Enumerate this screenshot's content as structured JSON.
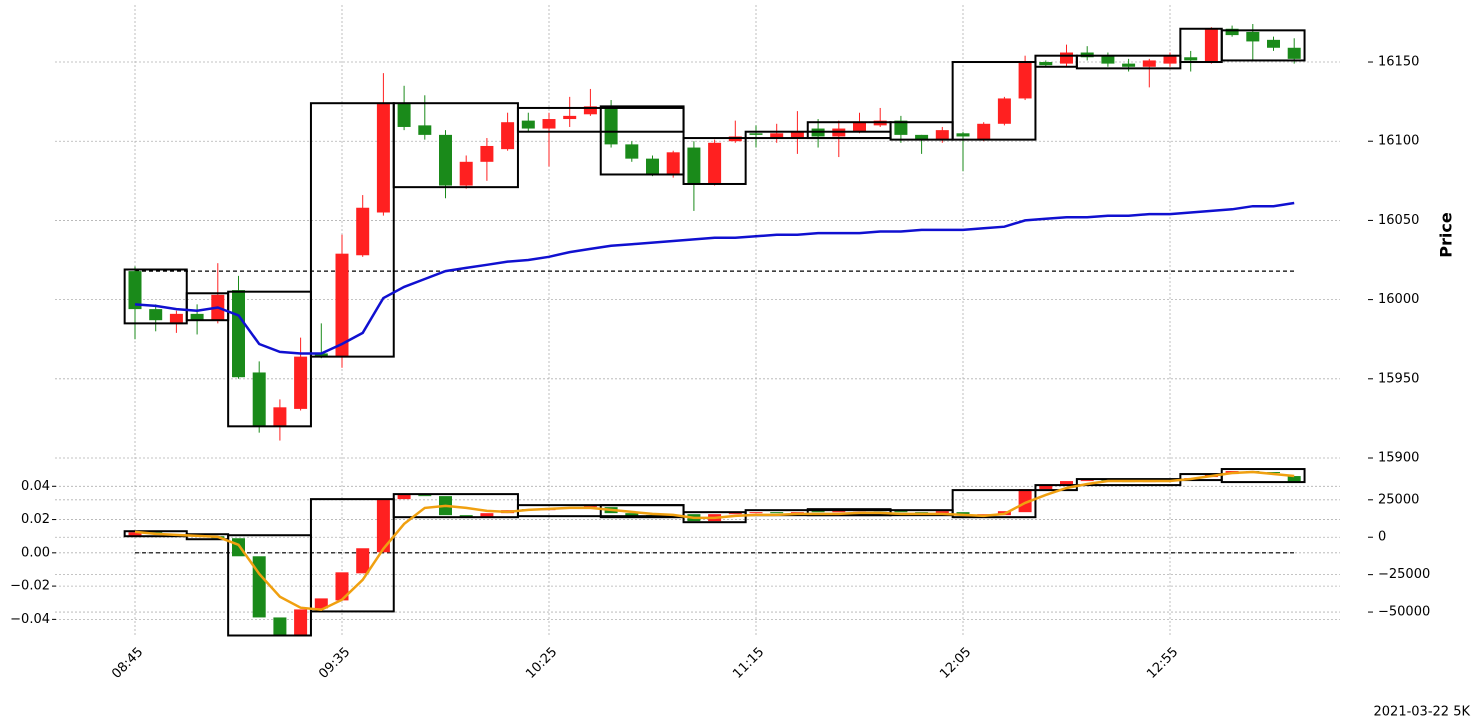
{
  "chart_data": [
    {
      "type": "candlestick",
      "y_label": "Price",
      "footnote": "2021-03-22 5K",
      "categories": [
        "08:45",
        null,
        null,
        null,
        null,
        null,
        null,
        null,
        null,
        null,
        "09:35",
        null,
        null,
        null,
        null,
        null,
        null,
        null,
        null,
        null,
        "10:25",
        null,
        null,
        null,
        null,
        null,
        null,
        null,
        null,
        null,
        "11:15",
        null,
        null,
        null,
        null,
        null,
        null,
        null,
        null,
        null,
        "12:05",
        null,
        null,
        null,
        null,
        null,
        null,
        null,
        null,
        null,
        "12:55",
        null,
        null,
        null,
        null,
        null,
        null
      ],
      "open": [
        16018,
        15994,
        15985,
        15991,
        15987,
        16006,
        15954,
        15920,
        15931,
        15966,
        15964,
        16028,
        16055,
        16124,
        16110,
        16104,
        16072,
        16087,
        16095,
        16113,
        16108,
        16114,
        16117,
        16122,
        16098,
        16089,
        16079,
        16096,
        16073,
        16100,
        16105,
        16102,
        16102,
        16108,
        16103,
        16106,
        16110,
        16113,
        16104,
        16101,
        16105,
        16101,
        16111,
        16127,
        16150,
        16149,
        16156,
        16154,
        16149,
        16147,
        16149,
        16153,
        16150,
        16171,
        16169,
        16164,
        16159
      ],
      "high": [
        16021,
        15997,
        15993,
        15997,
        16023,
        16015,
        15961,
        15937,
        15976,
        15985,
        16041,
        16066,
        16143,
        16135,
        16129,
        16107,
        16091,
        16102,
        16118,
        16118,
        16118,
        16128,
        16133,
        16126,
        16100,
        16091,
        16094,
        16100,
        16101,
        16113,
        16110,
        16111,
        16119,
        16114,
        16113,
        16118,
        16121,
        16116,
        16104,
        16109,
        16106,
        16112,
        16128,
        16154,
        16151,
        16161,
        16160,
        16156,
        16152,
        16152,
        16156,
        16157,
        16172,
        16173,
        16174,
        16166,
        16165
      ],
      "low": [
        15975,
        15980,
        15979,
        15978,
        15985,
        15950,
        15916,
        15911,
        15930,
        15963,
        15957,
        16027,
        16053,
        16107,
        16101,
        16064,
        16070,
        16075,
        16094,
        16106,
        16084,
        16109,
        16116,
        16096,
        16087,
        16078,
        16077,
        16056,
        16072,
        16099,
        16096,
        16099,
        16092,
        16096,
        16090,
        16105,
        16109,
        16099,
        16092,
        16099,
        16081,
        16100,
        16110,
        16126,
        16147,
        16147,
        16151,
        16147,
        16144,
        16134,
        16147,
        16144,
        16149,
        16166,
        16151,
        16157,
        16149
      ],
      "close": [
        15994,
        15987,
        15991,
        15987,
        16003,
        15951,
        15920,
        15932,
        15964,
        15964,
        16029,
        16058,
        16124,
        16109,
        16104,
        16072,
        16087,
        16097,
        16112,
        16108,
        16114,
        16116,
        16122,
        16098,
        16089,
        16079,
        16093,
        16073,
        16099,
        16103,
        16104,
        16105,
        16106,
        16103,
        16108,
        16112,
        16113,
        16104,
        16101,
        16107,
        16103,
        16111,
        16127,
        16150,
        16148,
        16156,
        16153,
        16149,
        16147,
        16151,
        16154,
        16151,
        16171,
        16167,
        16163,
        16159,
        16152
      ],
      "up_color": "#ff2020",
      "down_color": "#1a8a1a",
      "line": {
        "color": "#1010d0",
        "values": [
          15997,
          15996,
          15994,
          15993,
          15995,
          15990,
          15972,
          15967,
          15966,
          15966,
          15972,
          15979,
          16001,
          16008,
          16013,
          16018,
          16020,
          16022,
          16024,
          16025,
          16027,
          16030,
          16032,
          16034,
          16035,
          16036,
          16037,
          16038,
          16039,
          16039,
          16040,
          16041,
          16041,
          16042,
          16042,
          16042,
          16043,
          16043,
          16044,
          16044,
          16044,
          16045,
          16046,
          16050,
          16051,
          16052,
          16052,
          16053,
          16053,
          16054,
          16054,
          16055,
          16056,
          16057,
          16059,
          16059,
          16061
        ]
      },
      "ref_line": 16018,
      "boxes": [
        {
          "start": 0,
          "end": 2,
          "low": 15985,
          "high": 16019
        },
        {
          "start": 3,
          "end": 4,
          "low": 15987,
          "high": 16004
        },
        {
          "start": 5,
          "end": 8,
          "low": 15920,
          "high": 16005
        },
        {
          "start": 9,
          "end": 12,
          "low": 15964,
          "high": 16124
        },
        {
          "start": 13,
          "end": 18,
          "low": 16071,
          "high": 16124
        },
        {
          "start": 19,
          "end": 26,
          "low": 16106,
          "high": 16121
        },
        {
          "start": 23,
          "end": 26,
          "low": 16079,
          "high": 16122
        },
        {
          "start": 27,
          "end": 29,
          "low": 16073,
          "high": 16102
        },
        {
          "start": 30,
          "end": 36,
          "low": 16102,
          "high": 16106
        },
        {
          "start": 33,
          "end": 36,
          "low": 16102,
          "high": 16112
        },
        {
          "start": 37,
          "end": 39,
          "low": 16101,
          "high": 16112
        },
        {
          "start": 40,
          "end": 43,
          "low": 16101,
          "high": 16150
        },
        {
          "start": 44,
          "end": 45,
          "low": 16147,
          "high": 16154
        },
        {
          "start": 46,
          "end": 50,
          "low": 16146,
          "high": 16154
        },
        {
          "start": 51,
          "end": 52,
          "low": 16150,
          "high": 16171
        },
        {
          "start": 53,
          "end": 56,
          "low": 16151,
          "high": 16170
        }
      ],
      "ylim": [
        15900,
        16186
      ],
      "yticks": [
        15900,
        15950,
        16000,
        16050,
        16100,
        16150
      ],
      "grid": true
    },
    {
      "type": "candlestick",
      "open": [
        670,
        3350,
        2000,
        1300,
        670,
        -670,
        -12730,
        -53600,
        -65660,
        -47570,
        -42210,
        -24120,
        -10050,
        25460,
        28140,
        27470,
        14740,
        13400,
        16080,
        18760,
        18090,
        19430,
        20100,
        20100,
        16080,
        14740,
        14070,
        15410,
        10720,
        15410,
        16080,
        16750,
        16080,
        17420,
        16750,
        17420,
        18090,
        17420,
        16750,
        15410,
        16750,
        14740,
        14740,
        16750,
        32160,
        34840,
        37520,
        38190,
        37520,
        36850,
        37520,
        38860,
        40200,
        42210,
        44220,
        43550,
        40870
      ],
      "close": [
        3350,
        2000,
        1300,
        670,
        -670,
        -12730,
        -53600,
        -65660,
        -48240,
        -40870,
        -23450,
        -7370,
        25460,
        28810,
        27470,
        14740,
        13400,
        16080,
        18090,
        18090,
        19430,
        20100,
        20770,
        16080,
        14070,
        14070,
        14740,
        10720,
        15410,
        16080,
        16750,
        16080,
        16750,
        16750,
        17420,
        18090,
        17420,
        16750,
        16080,
        17420,
        14740,
        15410,
        17420,
        32160,
        34840,
        37520,
        38190,
        37520,
        36850,
        38190,
        38860,
        39530,
        42210,
        44220,
        43550,
        42880,
        36850
      ],
      "up_color": "#ff2020",
      "down_color": "#1a8a1a",
      "line": {
        "color": "#f0a010",
        "axis": "y",
        "values": [
          0.0126,
          0.0114,
          0.0108,
          0.0102,
          0.0096,
          0.0048,
          -0.0126,
          -0.0264,
          -0.033,
          -0.0342,
          -0.0282,
          -0.0162,
          0.0024,
          0.0174,
          0.027,
          0.0282,
          0.027,
          0.0252,
          0.0246,
          0.0258,
          0.0264,
          0.027,
          0.027,
          0.0258,
          0.0246,
          0.0234,
          0.0228,
          0.021,
          0.021,
          0.0222,
          0.0228,
          0.0228,
          0.0234,
          0.0234,
          0.0234,
          0.024,
          0.024,
          0.0234,
          0.0234,
          0.0234,
          0.0228,
          0.0222,
          0.0234,
          0.03,
          0.0348,
          0.039,
          0.0414,
          0.0432,
          0.0432,
          0.0432,
          0.0432,
          0.0444,
          0.0462,
          0.048,
          0.0486,
          0.0474,
          0.0462
        ]
      },
      "ref_line": 0,
      "boxes": [
        {
          "start": 0,
          "end": 2,
          "low": 670,
          "high": 4020
        },
        {
          "start": 3,
          "end": 4,
          "low": -1340,
          "high": 2010
        },
        {
          "start": 5,
          "end": 8,
          "low": -65660,
          "high": 1340
        },
        {
          "start": 9,
          "end": 12,
          "low": -49580,
          "high": 25460
        },
        {
          "start": 13,
          "end": 18,
          "low": 13400,
          "high": 28810
        },
        {
          "start": 19,
          "end": 26,
          "low": 14070,
          "high": 21440
        },
        {
          "start": 23,
          "end": 26,
          "low": 13400,
          "high": 21440
        },
        {
          "start": 27,
          "end": 29,
          "low": 10050,
          "high": 16750
        },
        {
          "start": 30,
          "end": 36,
          "low": 14740,
          "high": 18090
        },
        {
          "start": 33,
          "end": 36,
          "low": 14740,
          "high": 18760
        },
        {
          "start": 37,
          "end": 39,
          "low": 14740,
          "high": 18090
        },
        {
          "start": 40,
          "end": 43,
          "low": 13400,
          "high": 31490
        },
        {
          "start": 44,
          "end": 45,
          "low": 31490,
          "high": 34840
        },
        {
          "start": 46,
          "end": 50,
          "low": 34840,
          "high": 38860
        },
        {
          "start": 51,
          "end": 52,
          "low": 38190,
          "high": 42210
        },
        {
          "start": 53,
          "end": 56,
          "low": 36850,
          "high": 45560
        }
      ],
      "ylim": [
        -0.05,
        0.054
      ],
      "yticks": [
        {
          "value": -0.04,
          "label": "−0.04"
        },
        {
          "value": -0.02,
          "label": "−0.02"
        },
        {
          "value": 0,
          "label": "0.00"
        },
        0.02,
        0.04
      ],
      "y2lim": [
        -66000,
        49600
      ],
      "y2ticks": [
        {
          "value": -50000,
          "label": "−50000"
        },
        {
          "value": -25000,
          "label": "−25000"
        },
        0,
        25000
      ],
      "grid": true
    }
  ]
}
